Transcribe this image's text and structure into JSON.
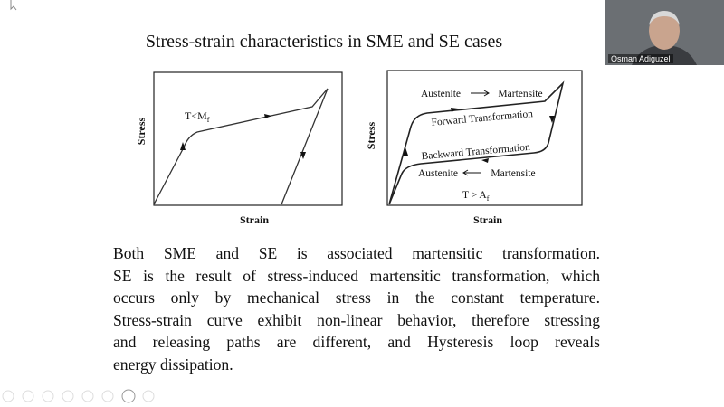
{
  "slide": {
    "title": "Stress-strain characteristics in SME and SE cases",
    "left_diagram": {
      "y_label": "Stress",
      "x_label": "Strain",
      "condition": {
        "main": "T<M",
        "sub": "f"
      }
    },
    "right_diagram": {
      "y_label": "Stress",
      "x_label": "Strain",
      "top_left": "Austenite",
      "top_right": "Martensite",
      "forward": "Forward Transformation",
      "backward": "Backward Transformation",
      "bottom_left": "Austenite",
      "bottom_right": "Martensite",
      "condition": {
        "main": "T > A",
        "sub": "f"
      }
    },
    "paragraph_lines": [
      "Both SME and SE is associated martensitic transformation.",
      "SE is the result of stress-induced martensitic transformation, which",
      "occurs only by mechanical stress in the constant temperature.",
      "Stress-strain curve exhibit non-linear behavior, therefore stressing",
      "and releasing paths are different, and Hysteresis loop reveals",
      "energy dissipation."
    ]
  },
  "webcam": {
    "name": "Osman Adiguzel"
  }
}
